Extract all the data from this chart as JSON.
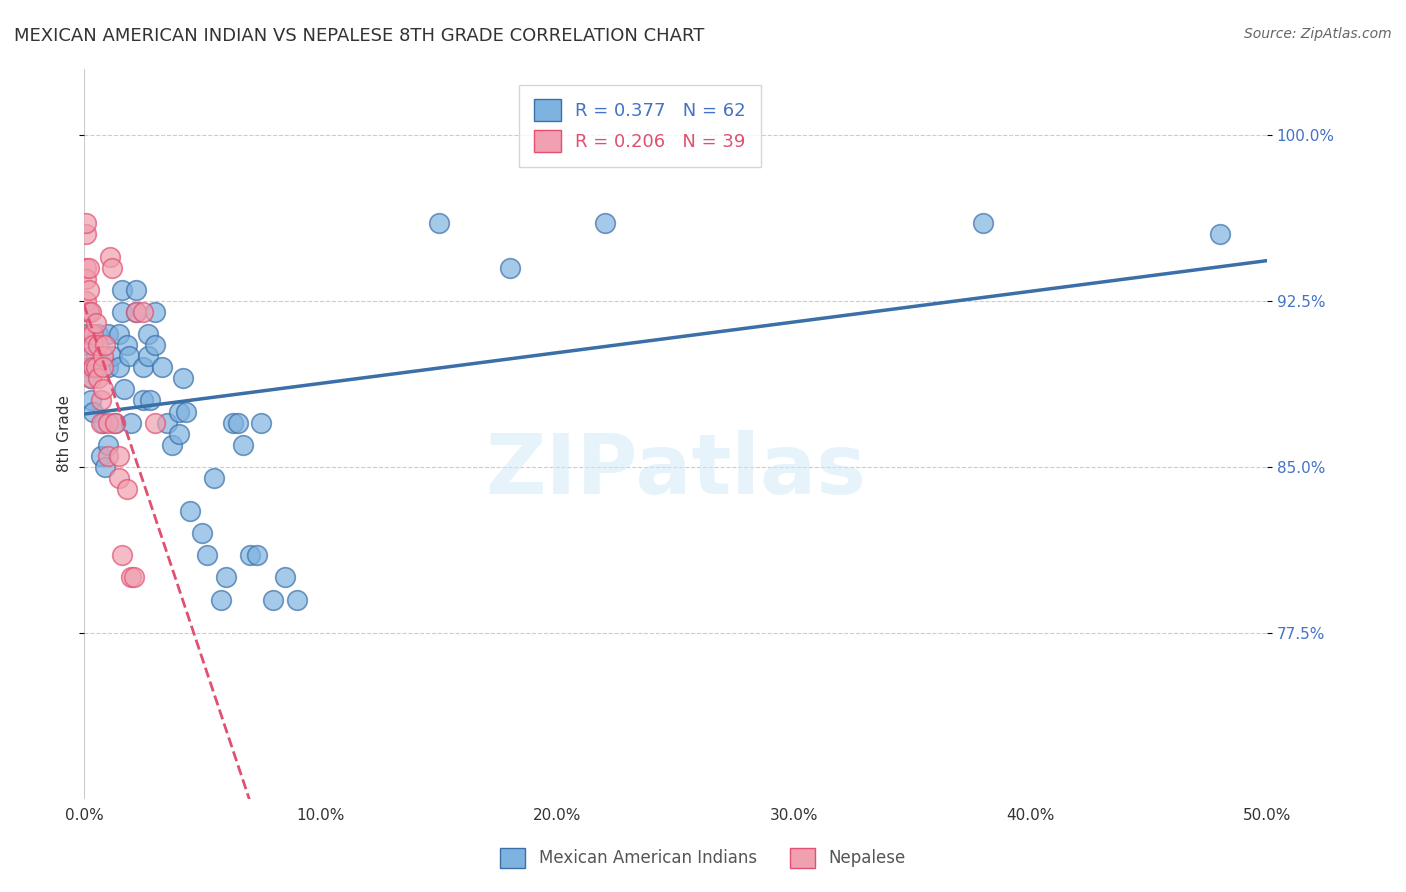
{
  "title": "MEXICAN AMERICAN INDIAN VS NEPALESE 8TH GRADE CORRELATION CHART",
  "source": "Source: ZipAtlas.com",
  "xlabel": "",
  "ylabel": "8th Grade",
  "xlim": [
    0.0,
    0.5
  ],
  "ylim": [
    0.7,
    1.03
  ],
  "ytick_labels": [
    "77.5%",
    "85.0%",
    "92.5%",
    "100.0%"
  ],
  "ytick_vals": [
    0.775,
    0.85,
    0.925,
    1.0
  ],
  "xtick_labels": [
    "0.0%",
    "10.0%",
    "20.0%",
    "30.0%",
    "40.0%",
    "50.0%"
  ],
  "xtick_vals": [
    0.0,
    0.1,
    0.2,
    0.3,
    0.4,
    0.5
  ],
  "legend_blue_label": "Mexican American Indians",
  "legend_pink_label": "Nepalese",
  "R_blue": 0.377,
  "N_blue": 62,
  "R_pink": 0.206,
  "N_pink": 39,
  "blue_color": "#7EB3E0",
  "pink_color": "#F0A0B0",
  "line_blue": "#3A6FA8",
  "line_pink": "#E05070",
  "watermark": "ZIPatlas",
  "blue_points_x": [
    0.001,
    0.001,
    0.002,
    0.002,
    0.003,
    0.003,
    0.004,
    0.004,
    0.005,
    0.006,
    0.007,
    0.008,
    0.009,
    0.01,
    0.01,
    0.01,
    0.012,
    0.013,
    0.015,
    0.015,
    0.016,
    0.016,
    0.017,
    0.018,
    0.019,
    0.02,
    0.022,
    0.022,
    0.025,
    0.025,
    0.027,
    0.027,
    0.028,
    0.03,
    0.03,
    0.033,
    0.035,
    0.037,
    0.04,
    0.04,
    0.042,
    0.043,
    0.045,
    0.05,
    0.052,
    0.055,
    0.058,
    0.06,
    0.063,
    0.065,
    0.067,
    0.07,
    0.073,
    0.075,
    0.08,
    0.085,
    0.09,
    0.15,
    0.18,
    0.22,
    0.38,
    0.48
  ],
  "blue_points_y": [
    0.91,
    0.905,
    0.895,
    0.92,
    0.89,
    0.88,
    0.875,
    0.895,
    0.9,
    0.91,
    0.855,
    0.87,
    0.85,
    0.895,
    0.91,
    0.86,
    0.9,
    0.87,
    0.895,
    0.91,
    0.92,
    0.93,
    0.885,
    0.905,
    0.9,
    0.87,
    0.92,
    0.93,
    0.88,
    0.895,
    0.9,
    0.91,
    0.88,
    0.905,
    0.92,
    0.895,
    0.87,
    0.86,
    0.865,
    0.875,
    0.89,
    0.875,
    0.83,
    0.82,
    0.81,
    0.845,
    0.79,
    0.8,
    0.87,
    0.87,
    0.86,
    0.81,
    0.81,
    0.87,
    0.79,
    0.8,
    0.79,
    0.96,
    0.94,
    0.96,
    0.96,
    0.955
  ],
  "pink_points_x": [
    0.001,
    0.001,
    0.001,
    0.001,
    0.001,
    0.002,
    0.002,
    0.002,
    0.003,
    0.003,
    0.003,
    0.003,
    0.004,
    0.004,
    0.004,
    0.005,
    0.005,
    0.006,
    0.006,
    0.007,
    0.007,
    0.008,
    0.008,
    0.008,
    0.009,
    0.01,
    0.01,
    0.011,
    0.012,
    0.013,
    0.015,
    0.015,
    0.016,
    0.018,
    0.02,
    0.021,
    0.022,
    0.025,
    0.03
  ],
  "pink_points_y": [
    0.955,
    0.96,
    0.94,
    0.935,
    0.925,
    0.94,
    0.93,
    0.92,
    0.92,
    0.91,
    0.9,
    0.89,
    0.91,
    0.905,
    0.895,
    0.915,
    0.895,
    0.905,
    0.89,
    0.88,
    0.87,
    0.9,
    0.895,
    0.885,
    0.905,
    0.87,
    0.855,
    0.945,
    0.94,
    0.87,
    0.855,
    0.845,
    0.81,
    0.84,
    0.8,
    0.8,
    0.92,
    0.92,
    0.87
  ]
}
